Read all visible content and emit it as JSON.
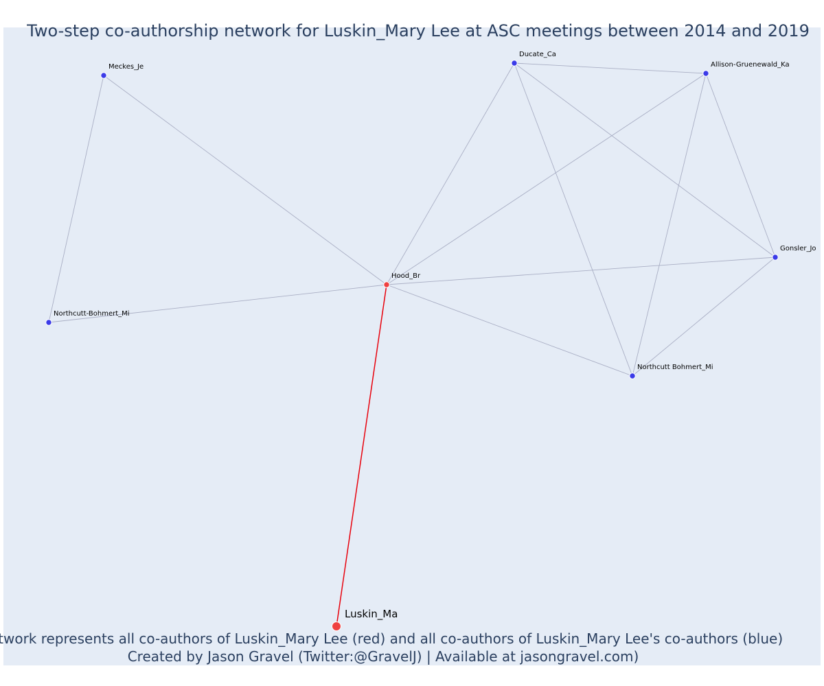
{
  "title": "Two-step co-authorship network for Luskin_Mary Lee at ASC meetings between 2014 and 2019",
  "caption": {
    "line1": "Network represents all co-authors of Luskin_Mary Lee (red) and all co-authors of Luskin_Mary Lee's co-authors (blue)",
    "line2": "Created by Jason Gravel (Twitter:@GravelJ) | Available at jasongravel.com)"
  },
  "colors": {
    "background": "#e5ecf6",
    "edge": "#a9aec4",
    "focus_edge": "#e8000b",
    "red_node": "#ef4040",
    "blue_node": "#3b3be8"
  },
  "nodes": [
    {
      "id": "luskin",
      "label": "Luskin_Ma",
      "group": "focus"
    },
    {
      "id": "hood",
      "label": "Hood_Br",
      "group": "coauthor"
    },
    {
      "id": "meckes",
      "label": "Meckes_Je",
      "group": "second"
    },
    {
      "id": "northcutt_hyphen",
      "label": "Northcutt-Bohmert_Mi",
      "group": "second"
    },
    {
      "id": "ducate",
      "label": "Ducate_Ca",
      "group": "second"
    },
    {
      "id": "allison",
      "label": "Allison-Gruenewald_Ka",
      "group": "second"
    },
    {
      "id": "gonsler",
      "label": "Gonsler_Jo",
      "group": "second"
    },
    {
      "id": "northcutt_space",
      "label": "Northcutt Bohmert_Mi",
      "group": "second"
    }
  ],
  "edges": [
    {
      "source": "luskin",
      "target": "hood",
      "focus": true
    },
    {
      "source": "hood",
      "target": "meckes"
    },
    {
      "source": "hood",
      "target": "northcutt_hyphen"
    },
    {
      "source": "meckes",
      "target": "northcutt_hyphen"
    },
    {
      "source": "hood",
      "target": "ducate"
    },
    {
      "source": "hood",
      "target": "allison"
    },
    {
      "source": "hood",
      "target": "gonsler"
    },
    {
      "source": "hood",
      "target": "northcutt_space"
    },
    {
      "source": "ducate",
      "target": "allison"
    },
    {
      "source": "ducate",
      "target": "gonsler"
    },
    {
      "source": "ducate",
      "target": "northcutt_space"
    },
    {
      "source": "allison",
      "target": "gonsler"
    },
    {
      "source": "allison",
      "target": "northcutt_space"
    },
    {
      "source": "gonsler",
      "target": "northcutt_space"
    }
  ]
}
